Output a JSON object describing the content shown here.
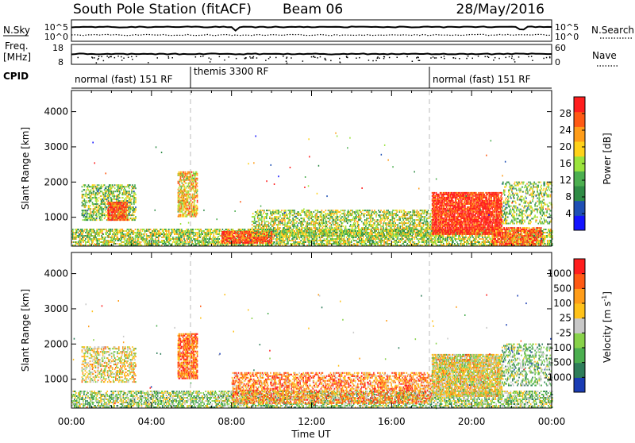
{
  "header": {
    "station": "South Pole Station (fitACF)",
    "beam": "Beam 06",
    "date": "28/May/2016"
  },
  "top_panels": {
    "nsky_label": "N.Sky",
    "nsky_ticks": [
      "10^5",
      "10^0"
    ],
    "nsearch_label": "N.Search",
    "nsearch_ticks": [
      "10^5",
      "10^0"
    ],
    "freq_label_1": "Freq.",
    "freq_label_2": "[MHz]",
    "freq_ticks": [
      "18",
      "8"
    ],
    "nave_label": "Nave",
    "nave_ticks": [
      "60",
      "0"
    ],
    "cpid_label": "CPID",
    "cpid_segments": [
      {
        "label": "normal (fast) 151 RF",
        "start": 0,
        "end": 6
      },
      {
        "label": "themis 3300 RF",
        "start": 6,
        "end": 18
      },
      {
        "label": "normal (fast) 151 RF",
        "start": 18,
        "end": 24
      }
    ]
  },
  "chart_data": [
    {
      "type": "heatmap",
      "panel": "power",
      "ylabel": "Slant Range [km]",
      "xlabel": "Time UT",
      "xlim": [
        0,
        24
      ],
      "ylim": [
        180,
        4600
      ],
      "yticks": [
        "1000",
        "2000",
        "3000",
        "4000"
      ],
      "xticks": [
        "00:00",
        "04:00",
        "08:00",
        "12:00",
        "16:00",
        "20:00",
        "00:00"
      ],
      "colorbar_label": "Power [dB]",
      "colorbar_ticks": [
        "4",
        "8",
        "12",
        "16",
        "20",
        "24",
        "28"
      ],
      "colorbar_range": [
        0,
        32
      ],
      "colors": [
        "#1414ff",
        "#1e4fb4",
        "#2f8c46",
        "#4caf50",
        "#9be33d",
        "#ffd21a",
        "#ff9d1a",
        "#ff5a14",
        "#ff1e1e"
      ],
      "regions": [
        {
          "t0": 0.0,
          "t1": 24.0,
          "r0": 180,
          "r1": 650,
          "level": 0.5,
          "density": 0.55
        },
        {
          "t0": 0.5,
          "t1": 3.2,
          "r0": 900,
          "r1": 1900,
          "level": 0.45,
          "density": 0.45
        },
        {
          "t0": 1.8,
          "t1": 2.8,
          "r0": 900,
          "r1": 1400,
          "level": 0.9,
          "density": 0.7
        },
        {
          "t0": 5.3,
          "t1": 6.3,
          "r0": 1000,
          "r1": 2300,
          "level": 0.65,
          "density": 0.6
        },
        {
          "t0": 7.5,
          "t1": 10.0,
          "r0": 250,
          "r1": 600,
          "level": 0.9,
          "density": 0.7
        },
        {
          "t0": 9.0,
          "t1": 18.0,
          "r0": 450,
          "r1": 1200,
          "level": 0.5,
          "density": 0.45
        },
        {
          "t0": 18.0,
          "t1": 21.5,
          "r0": 500,
          "r1": 1700,
          "level": 0.95,
          "density": 0.8
        },
        {
          "t0": 21.5,
          "t1": 24.0,
          "r0": 800,
          "r1": 2000,
          "level": 0.45,
          "density": 0.3
        },
        {
          "t0": 21.0,
          "t1": 23.5,
          "r0": 180,
          "r1": 700,
          "level": 0.85,
          "density": 0.6
        }
      ]
    },
    {
      "type": "heatmap",
      "panel": "velocity",
      "ylabel": "Slant Range [km]",
      "xlabel": "Time UT",
      "xlim": [
        0,
        24
      ],
      "ylim": [
        180,
        4600
      ],
      "yticks": [
        "1000",
        "2000",
        "3000",
        "4000"
      ],
      "xticks": [
        "00:00",
        "04:00",
        "08:00",
        "12:00",
        "16:00",
        "20:00",
        "00:00"
      ],
      "colorbar_label": "Velocity [m s^-1]",
      "colorbar_ticks": [
        "1000",
        "500",
        "100",
        "25",
        "-25",
        "-100",
        "-500",
        "-1000"
      ],
      "colors": [
        "#1a3cb4",
        "#2e7d5a",
        "#4caf50",
        "#88d24a",
        "#c8c8c8",
        "#ffc21a",
        "#ff9d1a",
        "#ff5a14",
        "#ff1e1e"
      ],
      "regions": [
        {
          "t0": 0.0,
          "t1": 24.0,
          "r0": 180,
          "r1": 650,
          "level": 0.4,
          "density": 0.5
        },
        {
          "t0": 0.5,
          "t1": 3.2,
          "r0": 900,
          "r1": 1900,
          "level": 0.55,
          "density": 0.4
        },
        {
          "t0": 5.3,
          "t1": 6.3,
          "r0": 1000,
          "r1": 2300,
          "level": 0.8,
          "density": 0.7
        },
        {
          "t0": 8.0,
          "t1": 18.0,
          "r0": 300,
          "r1": 1200,
          "level": 0.75,
          "density": 0.45
        },
        {
          "t0": 18.0,
          "t1": 21.5,
          "r0": 500,
          "r1": 1700,
          "level": 0.55,
          "density": 0.75
        },
        {
          "t0": 21.5,
          "t1": 24.0,
          "r0": 800,
          "r1": 2000,
          "level": 0.35,
          "density": 0.3
        }
      ]
    }
  ]
}
